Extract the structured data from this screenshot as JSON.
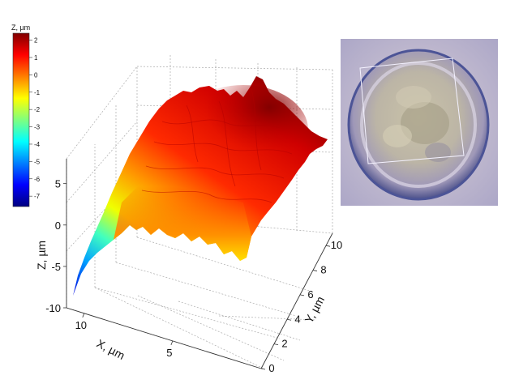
{
  "chart_data": {
    "type": "surface3d",
    "colorbar": {
      "title": "Z, µm",
      "ticks": [
        "2",
        "1",
        "0",
        "-1",
        "-2",
        "-3",
        "-4",
        "-5",
        "-6",
        "-7"
      ],
      "range": [
        -7.6,
        2.4
      ],
      "colors": [
        "#00007f",
        "#0000ff",
        "#007fff",
        "#00ffff",
        "#7fff7f",
        "#ffff00",
        "#ff7f00",
        "#ff0000",
        "#7f0000"
      ]
    },
    "axes": {
      "x": {
        "label": "X, µm",
        "ticks": [
          "10",
          "5"
        ],
        "range": [
          0,
          11
        ]
      },
      "y": {
        "label": "Y, µm",
        "ticks": [
          "0",
          "2",
          "4",
          "6",
          "8",
          "10"
        ],
        "range": [
          0,
          11
        ]
      },
      "z": {
        "label": "Z, µm",
        "ticks": [
          "5",
          "0",
          "-5",
          "-10"
        ],
        "range": [
          -10,
          8
        ]
      }
    },
    "surface": {
      "z_min": -7.5,
      "z_max": 2.3,
      "description_color": "mostly red plateau near z = 0 to 2, dropping to about -7 at the near left corner"
    },
    "grid": true
  },
  "inset": {
    "image": "optical micrograph of a round cell with a square scan-area outline"
  }
}
